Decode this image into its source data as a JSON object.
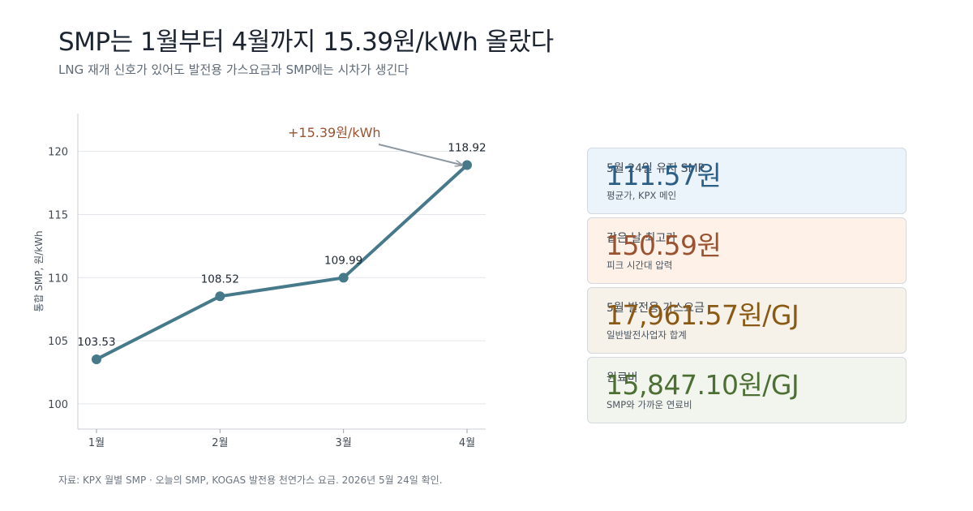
{
  "header": {
    "title": "SMP는 1월부터 4월까지 15.39원/kWh 올랐다",
    "subtitle": "LNG 재개 신호가 있어도 발전용 가스요금과 SMP에는 시차가 생긴다"
  },
  "chart_data": {
    "type": "line",
    "categories": [
      "1월",
      "2월",
      "3월",
      "4월"
    ],
    "series": [
      {
        "values": [
          103.53,
          108.52,
          109.99,
          118.92
        ]
      }
    ],
    "data_labels": [
      "103.53",
      "108.52",
      "109.99",
      "118.92"
    ],
    "ylabel": "통합 SMP, 원/kWh",
    "ylim": [
      98,
      123
    ],
    "yticks": [
      100,
      105,
      110,
      115,
      120
    ],
    "grid": true,
    "annotation": {
      "text": "+15.39원/kWh",
      "target_category": "4월"
    },
    "line_color": "#46798a",
    "annotation_color": "#9a5230"
  },
  "cards": [
    {
      "label": "5월 24일 유지 SMP",
      "value": "111.57원",
      "note": "평균가, KPX 메인",
      "bg": "#ebf3fb",
      "color": "#2c5f86"
    },
    {
      "label": "같은 날 최고가",
      "value": "150.59원",
      "note": "피크 시간대 압력",
      "bg": "#fdf1e8",
      "color": "#9a5230"
    },
    {
      "label": "5월 발전용 가스요금",
      "value": "17,961.57원/GJ",
      "note": "일반발전사업자 합계",
      "bg": "#f6f1e9",
      "color": "#8a5a14"
    },
    {
      "label": "원료비",
      "value": "15,847.10원/GJ",
      "note": "SMP와 가까운 연료비",
      "bg": "#f2f5ee",
      "color": "#4c7033"
    }
  ],
  "footer": {
    "source": "자료: KPX 월별 SMP · 오늘의 SMP, KOGAS 발전용 천연가스 요금. 2026년 5월 24일 확인."
  }
}
